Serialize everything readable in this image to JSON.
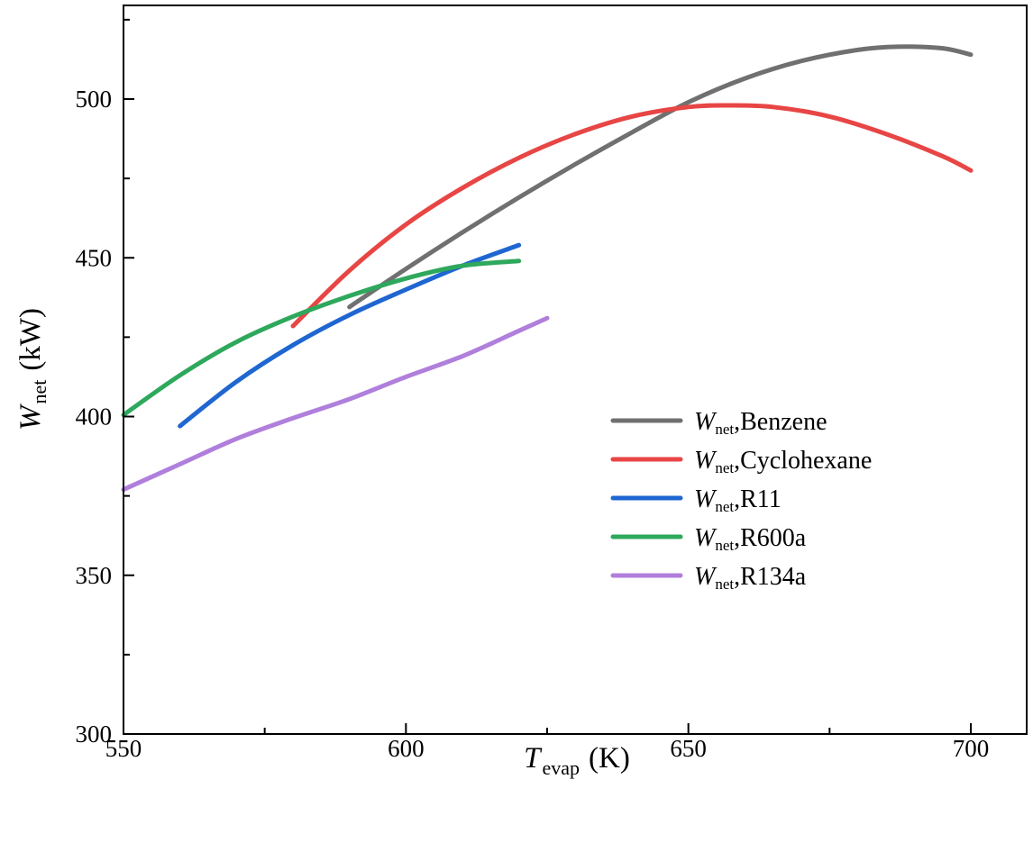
{
  "chart_data": {
    "type": "line",
    "title": "",
    "xlabel": {
      "main": "T",
      "sub": "evap",
      "unit": "(K)"
    },
    "ylabel": {
      "main": "W",
      "sub": "net",
      "unit": "(kW)"
    },
    "xlim": [
      550,
      710
    ],
    "ylim": [
      300,
      530
    ],
    "xticks": [
      550,
      600,
      650,
      700
    ],
    "yticks": [
      300,
      350,
      400,
      450,
      500
    ],
    "grid": false,
    "legend_position": "right-center",
    "series": [
      {
        "name": "Benzene",
        "legend_prefix": "W",
        "legend_sub": "net",
        "legend_label": ",Benzene",
        "color": "#707070",
        "x": [
          590,
          600,
          610,
          620,
          630,
          640,
          650,
          660,
          670,
          680,
          687,
          695,
          700
        ],
        "y": [
          434.5,
          446.5,
          458,
          469,
          479.5,
          489.5,
          499,
          506.5,
          512,
          515.5,
          516.5,
          516,
          514
        ]
      },
      {
        "name": "Cyclohexane",
        "legend_prefix": "W",
        "legend_sub": "net",
        "legend_label": ",Cyclohexane",
        "color": "#e84545",
        "x": [
          580,
          590,
          600,
          610,
          620,
          630,
          640,
          650,
          657,
          665,
          675,
          685,
          695,
          700
        ],
        "y": [
          428.5,
          446,
          460.5,
          472,
          481.5,
          489,
          494.5,
          497.5,
          498,
          497.5,
          494.5,
          489,
          482,
          477.5
        ]
      },
      {
        "name": "R11",
        "legend_prefix": "W",
        "legend_sub": "net",
        "legend_label": ",R11",
        "color": "#1f66d1",
        "x": [
          560,
          570,
          580,
          590,
          600,
          610,
          620
        ],
        "y": [
          397,
          411,
          422.5,
          432,
          440,
          447.5,
          454
        ]
      },
      {
        "name": "R600a",
        "legend_prefix": "W",
        "legend_sub": "net",
        "legend_label": ",R600a",
        "color": "#2ea85c",
        "x": [
          550,
          560,
          570,
          580,
          590,
          600,
          610,
          620
        ],
        "y": [
          400.5,
          413,
          423.5,
          431.5,
          438,
          443.5,
          447.5,
          449
        ]
      },
      {
        "name": "R134a",
        "legend_prefix": "W",
        "legend_sub": "net",
        "legend_label": ",R134a",
        "color": "#b07fdc",
        "x": [
          550,
          560,
          570,
          580,
          590,
          600,
          610,
          620,
          625
        ],
        "y": [
          377,
          385,
          393,
          399.5,
          405.5,
          412.5,
          419,
          427,
          431
        ]
      }
    ]
  }
}
